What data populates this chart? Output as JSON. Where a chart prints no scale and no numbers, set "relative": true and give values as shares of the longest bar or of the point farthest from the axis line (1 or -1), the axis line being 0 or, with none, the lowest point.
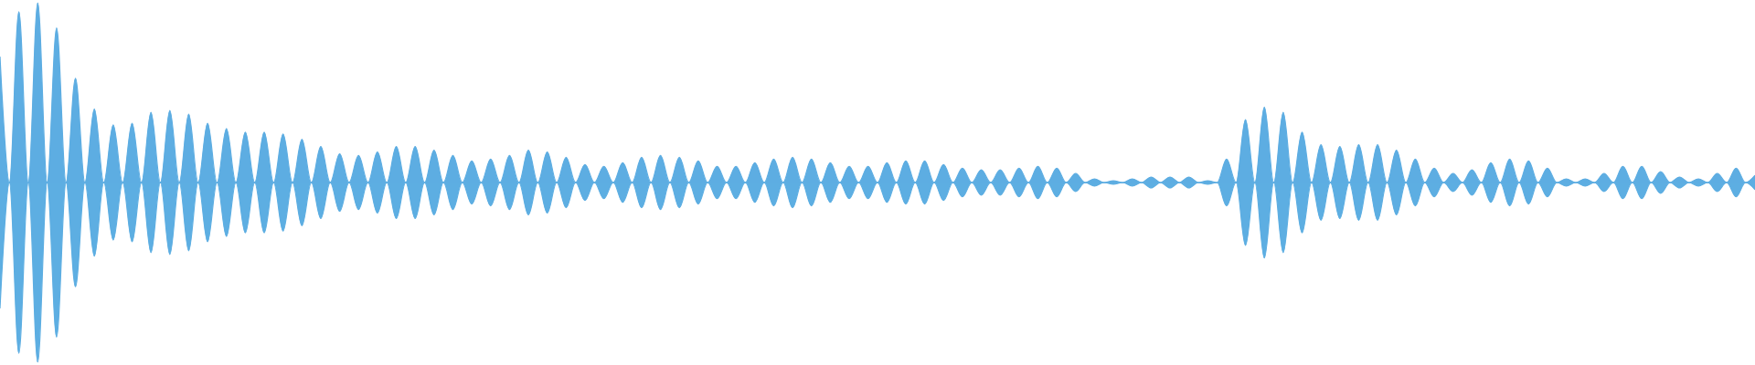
{
  "chart_data": {
    "type": "area",
    "relative": true,
    "ref_lines": [
      {
        "axis": "y",
        "value": 0,
        "color": "#5dade2"
      }
    ],
    "categories": [
      null,
      null,
      null,
      null,
      null,
      null,
      null,
      null,
      null,
      null,
      null,
      null,
      null,
      null,
      null,
      null,
      null,
      null,
      null,
      null,
      null,
      null,
      null,
      null,
      null,
      null,
      null,
      null,
      null,
      null,
      null,
      null,
      null,
      null,
      null,
      null,
      null,
      null,
      null,
      null,
      null,
      null,
      null,
      null,
      null,
      null,
      null,
      null,
      null,
      null,
      null,
      null,
      null,
      null,
      null,
      null,
      null,
      null,
      null,
      null,
      null,
      null,
      null,
      null,
      null,
      null,
      null,
      null,
      null,
      null,
      null,
      null,
      null,
      null,
      null,
      null,
      null,
      null,
      null,
      null,
      null,
      null,
      null,
      null,
      null,
      null,
      null,
      null,
      null,
      null,
      null,
      null,
      null,
      null,
      null,
      null,
      null,
      null,
      null,
      null,
      null,
      null,
      null,
      null,
      null,
      null,
      null,
      null,
      null,
      null,
      null,
      null,
      null,
      null,
      null,
      null,
      null,
      null,
      null,
      null,
      null,
      null,
      null,
      null,
      null,
      null,
      null,
      null,
      null,
      null,
      null,
      null,
      null,
      null,
      null,
      null,
      null,
      null,
      null,
      null,
      null,
      null,
      null,
      null,
      null,
      null,
      null,
      null,
      null,
      null,
      null,
      null,
      null,
      null,
      null,
      null,
      null,
      null,
      null,
      null,
      null,
      null,
      null,
      null,
      null,
      null,
      null,
      null,
      null,
      null,
      null,
      null,
      null,
      null,
      null,
      null,
      null,
      null,
      null,
      null,
      null,
      null,
      null,
      null,
      null,
      null,
      null
    ],
    "series": [
      {
        "color": "#5dade2",
        "values": [
          0.7,
          0,
          0.95,
          0,
          1,
          0,
          0.86,
          0,
          0.58,
          0,
          0.41,
          0,
          0.32,
          0,
          0.33,
          0,
          0.39,
          0,
          0.4,
          0,
          0.38,
          0,
          0.33,
          0,
          0.3,
          0,
          0.28,
          0,
          0.28,
          0,
          0.27,
          0,
          0.24,
          0,
          0.2,
          0,
          0.16,
          0,
          0.15,
          0,
          0.17,
          0,
          0.2,
          0,
          0.2,
          0,
          0.18,
          0,
          0.15,
          0,
          0.12,
          0,
          0.13,
          0,
          0.15,
          0,
          0.18,
          0,
          0.17,
          0,
          0.14,
          0,
          0.1,
          0,
          0.09,
          0,
          0.11,
          0,
          0.14,
          0,
          0.15,
          0,
          0.14,
          0,
          0.12,
          0,
          0.09,
          0,
          0.09,
          0,
          0.11,
          0,
          0.13,
          0,
          0.14,
          0,
          0.13,
          0,
          0.11,
          0,
          0.09,
          0,
          0.09,
          0,
          0.11,
          0,
          0.12,
          0,
          0.12,
          0,
          0.1,
          0,
          0.08,
          0,
          0.07,
          0,
          0.07,
          0,
          0.08,
          0,
          0.09,
          0,
          0.08,
          0,
          0.05,
          0,
          0.02,
          0,
          0.01,
          0,
          0.02,
          0,
          0.03,
          0,
          0.03,
          0,
          0.03,
          0,
          0.01,
          0,
          0.13,
          0,
          0.35,
          0,
          0.42,
          0,
          0.39,
          0,
          0.28,
          0,
          0.21,
          0,
          0.2,
          0,
          0.21,
          0,
          0.21,
          0,
          0.18,
          0,
          0.13,
          0,
          0.08,
          0,
          0.05,
          0,
          0.07,
          0,
          0.11,
          0,
          0.13,
          0,
          0.12,
          0,
          0.08,
          0,
          0.02,
          0,
          0.02,
          0,
          0.05,
          0,
          0.09,
          0,
          0.09,
          0,
          0.06,
          0,
          0.03,
          0,
          0.02,
          0,
          0.05,
          0,
          0.08,
          0,
          0.04
        ]
      },
      {
        "color": "#5daee2",
        "values": [
          -0.7,
          0,
          -0.95,
          0,
          -1,
          0,
          -0.86,
          0,
          -0.58,
          0,
          -0.41,
          0,
          -0.32,
          0,
          -0.33,
          0,
          -0.39,
          0,
          -0.4,
          0,
          -0.38,
          0,
          -0.33,
          0,
          -0.3,
          0,
          -0.28,
          0,
          -0.28,
          0,
          -0.27,
          0,
          -0.24,
          0,
          -0.2,
          0,
          -0.16,
          0,
          -0.15,
          0,
          -0.17,
          0,
          -0.2,
          0,
          -0.2,
          0,
          -0.18,
          0,
          -0.15,
          0,
          -0.12,
          0,
          -0.13,
          0,
          -0.15,
          0,
          -0.18,
          0,
          -0.17,
          0,
          -0.14,
          0,
          -0.1,
          0,
          -0.09,
          0,
          -0.11,
          0,
          -0.14,
          0,
          -0.15,
          0,
          -0.14,
          0,
          -0.12,
          0,
          -0.09,
          0,
          -0.09,
          0,
          -0.11,
          0,
          -0.13,
          0,
          -0.14,
          0,
          -0.13,
          0,
          -0.11,
          0,
          -0.09,
          0,
          -0.09,
          0,
          -0.11,
          0,
          -0.12,
          0,
          -0.12,
          0,
          -0.1,
          0,
          -0.08,
          0,
          -0.07,
          0,
          -0.07,
          0,
          -0.08,
          0,
          -0.09,
          0,
          -0.08,
          0,
          -0.05,
          0,
          -0.02,
          0,
          -0.01,
          0,
          -0.02,
          0,
          -0.03,
          0,
          -0.03,
          0,
          -0.03,
          0,
          -0.01,
          0,
          -0.13,
          0,
          -0.35,
          0,
          -0.42,
          0,
          -0.39,
          0,
          -0.28,
          0,
          -0.21,
          0,
          -0.2,
          0,
          -0.21,
          0,
          -0.21,
          0,
          -0.18,
          0,
          -0.13,
          0,
          -0.08,
          0,
          -0.05,
          0,
          -0.07,
          0,
          -0.11,
          0,
          -0.13,
          0,
          -0.12,
          0,
          -0.08,
          0,
          -0.02,
          0,
          -0.02,
          0,
          -0.05,
          0,
          -0.09,
          0,
          -0.09,
          0,
          -0.06,
          0,
          -0.03,
          0,
          -0.02,
          0,
          -0.05,
          0,
          -0.08,
          0,
          -0.04
        ]
      }
    ]
  }
}
